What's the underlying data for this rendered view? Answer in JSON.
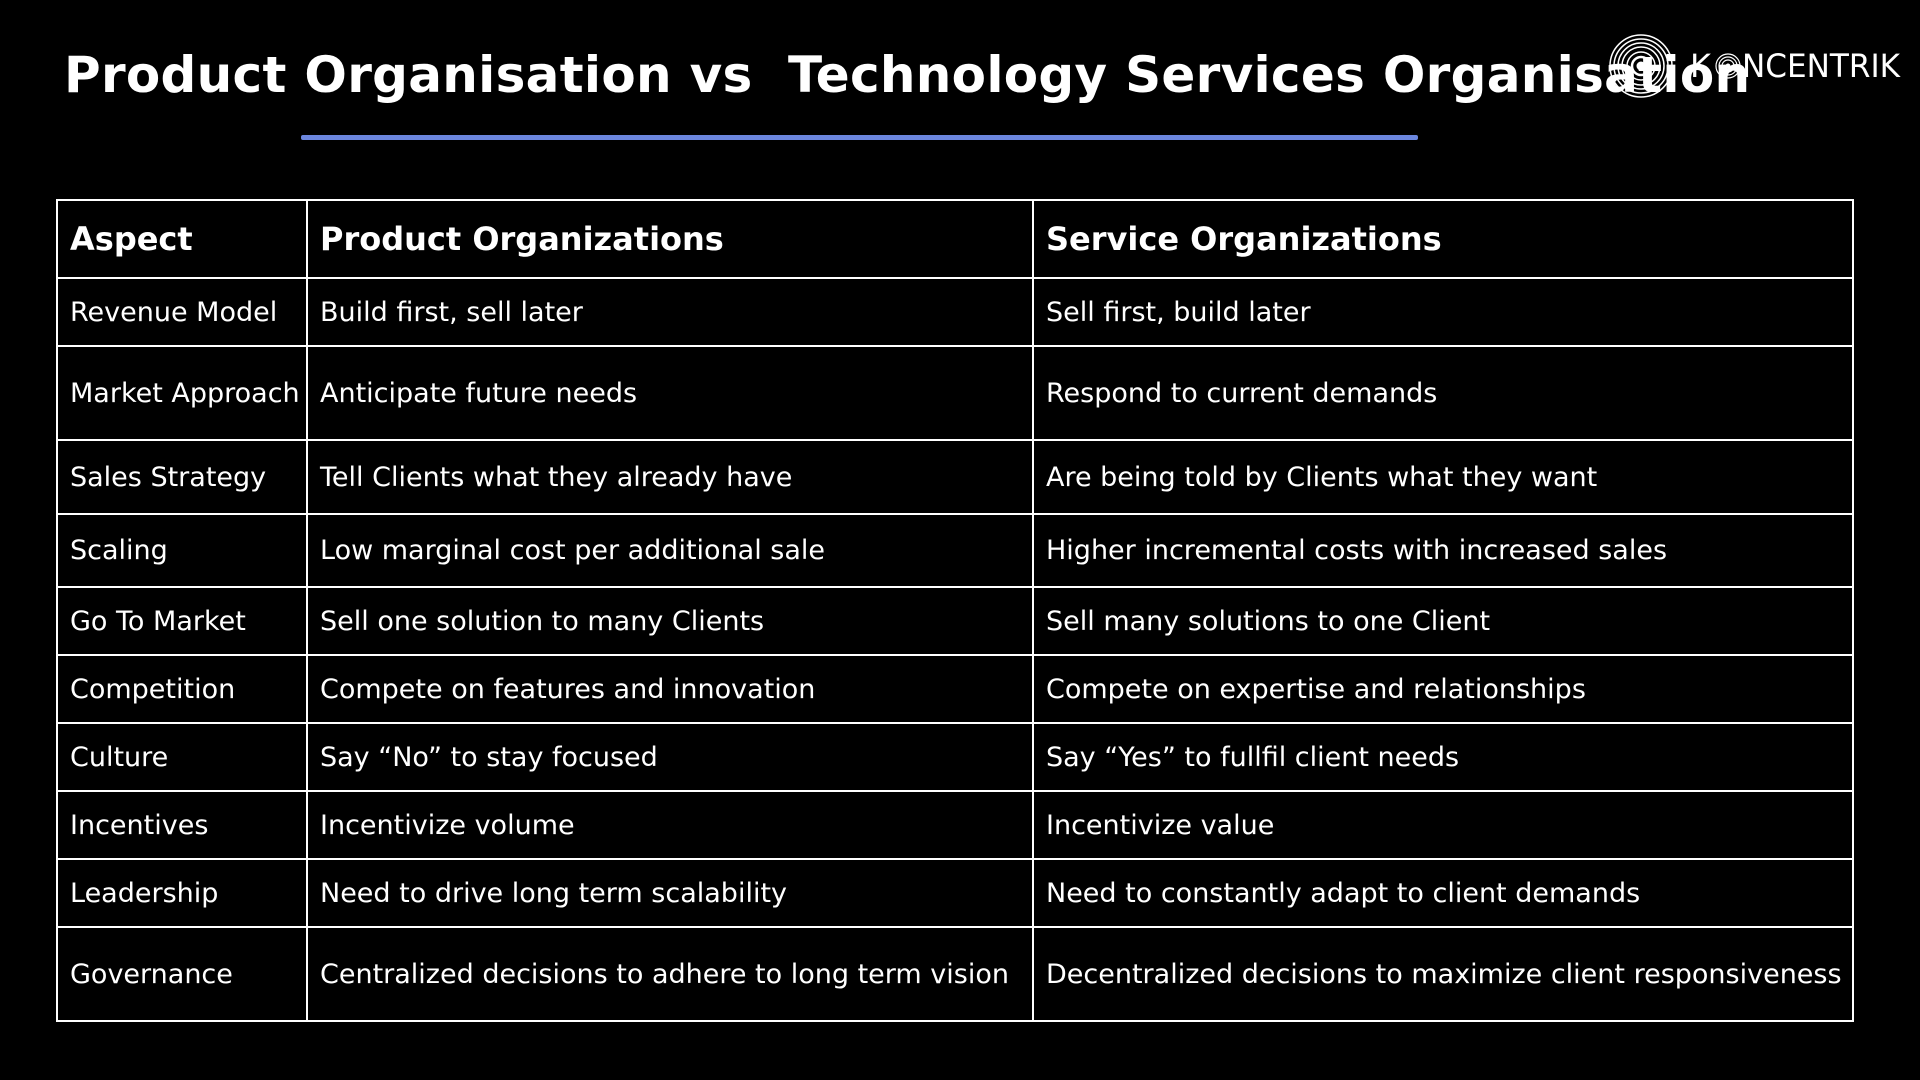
{
  "slide": {
    "title": "Product Organisation vs  Technology Services Organisation",
    "accent_color": "#6b86de"
  },
  "logo": {
    "wordmark_prefix": "K",
    "wordmark_suffix": "NCENTRIK",
    "icon": "concentric-circles-icon"
  },
  "table": {
    "headers": {
      "aspect": "Aspect",
      "product": "Product Organizations",
      "service": "Service Organizations"
    },
    "rows": [
      {
        "aspect": "Revenue Model",
        "product": "Build first,  sell later",
        "service": "Sell first,  build later"
      },
      {
        "aspect": "Market Approach",
        "product": "Anticipate future needs",
        "service": "Respond to current demands"
      },
      {
        "aspect": "Sales Strategy",
        "product": "Tell Clients what they already have",
        "service": "Are being told by Clients what they want"
      },
      {
        "aspect": "Scaling",
        "product": "Low marginal cost per additional sale",
        "service": "Higher incremental costs with increased sales"
      },
      {
        "aspect": "Go To Market",
        "product": "Sell one solution to many Clients",
        "service": "Sell many solutions to one Client"
      },
      {
        "aspect": "Competition",
        "product": "Compete on features and innovation",
        "service": "Compete on expertise and relationships"
      },
      {
        "aspect": "Culture",
        "product": "Say “No” to stay focused",
        "service": "Say “Yes” to fullfil client needs"
      },
      {
        "aspect": "Incentives",
        "product": "Incentivize volume",
        "service": "Incentivize value"
      },
      {
        "aspect": "Leadership",
        "product": "Need to drive long term scalability",
        "service": "Need to constantly adapt to client demands"
      },
      {
        "aspect": "Governance",
        "product": "Centralized decisions to adhere to long term vision",
        "service": "Decentralized decisions to maximize client responsiveness"
      }
    ]
  }
}
